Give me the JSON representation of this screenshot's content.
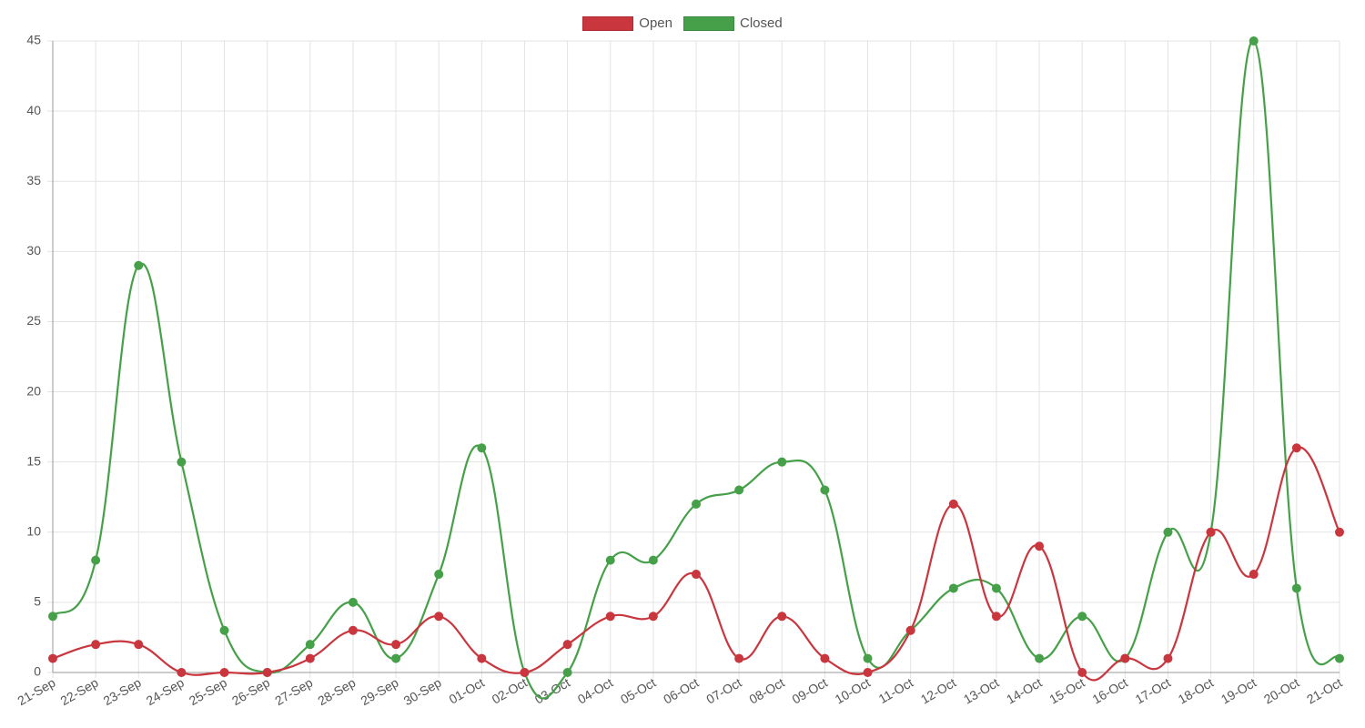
{
  "colors": {
    "open": "#c9363e",
    "closed": "#46a049",
    "grid": "#e3e3e3",
    "axis": "#999999"
  },
  "legend": [
    {
      "label": "Open",
      "color": "#c9363e"
    },
    {
      "label": "Closed",
      "color": "#46a049"
    }
  ],
  "chart_data": {
    "type": "line",
    "x": [
      "21-Sep",
      "22-Sep",
      "23-Sep",
      "24-Sep",
      "25-Sep",
      "26-Sep",
      "27-Sep",
      "28-Sep",
      "29-Sep",
      "30-Sep",
      "01-Oct",
      "02-Oct",
      "03-Oct",
      "04-Oct",
      "05-Oct",
      "06-Oct",
      "07-Oct",
      "08-Oct",
      "09-Oct",
      "10-Oct",
      "11-Oct",
      "12-Oct",
      "13-Oct",
      "14-Oct",
      "15-Oct",
      "16-Oct",
      "17-Oct",
      "18-Oct",
      "19-Oct",
      "20-Oct",
      "21-Oct"
    ],
    "series": [
      {
        "name": "Open",
        "color": "#c9363e",
        "values": [
          1,
          2,
          2,
          0,
          0,
          0,
          1,
          3,
          2,
          4,
          1,
          0,
          2,
          4,
          4,
          7,
          1,
          4,
          1,
          0,
          3,
          12,
          4,
          9,
          0,
          1,
          1,
          10,
          7,
          16,
          10
        ]
      },
      {
        "name": "Closed",
        "color": "#46a049",
        "values": [
          4,
          8,
          29,
          15,
          3,
          0,
          2,
          5,
          1,
          7,
          16,
          0,
          0,
          8,
          8,
          12,
          13,
          15,
          13,
          1,
          3,
          6,
          6,
          1,
          4,
          1,
          10,
          10,
          45,
          6,
          1
        ]
      }
    ],
    "ylim": [
      0,
      45
    ],
    "yticks": [
      0,
      5,
      10,
      15,
      20,
      25,
      30,
      35,
      40,
      45
    ],
    "grid": true,
    "legend_position": "top-center",
    "smooth": true
  }
}
